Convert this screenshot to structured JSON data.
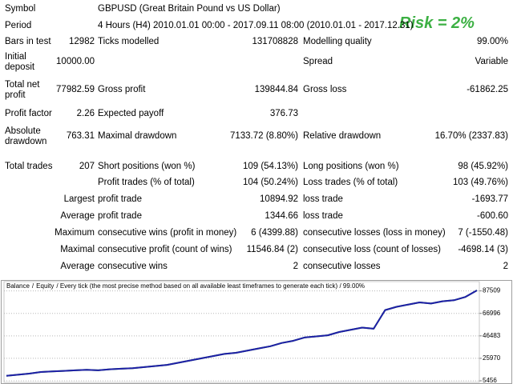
{
  "report": {
    "risk_label": "Risk = 2%",
    "rows": [
      [
        "Symbol",
        null,
        "GBPUSD (Great Britain Pound vs US Dollar)"
      ],
      [
        "Period",
        null,
        "4 Hours (H4) 2010.01.01 00:00 - 2017.09.11 08:00 (2010.01.01 - 2017.12.31)"
      ],
      [
        "Bars in test",
        "12982",
        "Ticks modelled",
        "131708828",
        "Modelling quality",
        "99.00%"
      ],
      [
        "Initial deposit",
        "10000.00",
        null,
        null,
        "Spread",
        "Variable"
      ],
      [
        "Total net profit",
        "77982.59",
        "Gross profit",
        "139844.84",
        "Gross loss",
        "-61862.25"
      ],
      [
        "Profit factor",
        "2.26",
        "Expected payoff",
        "376.73"
      ],
      [
        "Absolute drawdown",
        "763.31",
        "Maximal drawdown",
        "7133.72 (8.80%)",
        "Relative drawdown",
        "16.70% (2337.83)"
      ],
      [
        "Total trades",
        "207",
        "Short positions (won %)",
        "109 (54.13%)",
        "Long positions (won %)",
        "98 (45.92%)"
      ],
      [
        null,
        null,
        "Profit trades (% of total)",
        "104 (50.24%)",
        "Loss trades (% of total)",
        "103 (49.76%)"
      ],
      [
        null,
        "Largest",
        "profit trade",
        "10894.92",
        "loss trade",
        "-1693.77"
      ],
      [
        null,
        "Average",
        "profit trade",
        "1344.66",
        "loss trade",
        "-600.60"
      ],
      [
        null,
        "Maximum",
        "consecutive wins (profit in money)",
        "6 (4399.88)",
        "consecutive losses (loss in money)",
        "7 (-1550.48)"
      ],
      [
        null,
        "Maximal",
        "consecutive profit (count of wins)",
        "11546.84 (2)",
        "consecutive loss (count of losses)",
        "-4698.14 (3)"
      ],
      [
        null,
        "Average",
        "consecutive wins",
        "2",
        "consecutive losses",
        "2"
      ]
    ]
  },
  "chart_data": {
    "type": "line",
    "legend_separator": "/",
    "subtitle": "/ Every tick (the most precise method based on all available least timeframes to generate each tick) / 99.00%",
    "series": [
      {
        "name": "Balance",
        "color": "#1f1fa8",
        "values": [
          10000,
          11000,
          12000,
          13500,
          14000,
          14500,
          15000,
          15500,
          15000,
          16000,
          16500,
          17000,
          18000,
          19000,
          20000,
          22000,
          24000,
          26000,
          28000,
          30000,
          31000,
          33000,
          35000,
          37000,
          40000,
          42000,
          45000,
          46000,
          47000,
          50000,
          52000,
          54000,
          53000,
          70000,
          73000,
          75000,
          77000,
          76000,
          78000,
          79000,
          82000,
          87982
        ]
      },
      {
        "name": "Equity",
        "color": "#2e9b2e",
        "values": [
          10000,
          11000,
          12000,
          13500,
          14000,
          14500,
          15000,
          15500,
          15000,
          16000,
          16500,
          17000,
          18000,
          19000,
          20000,
          22000,
          24000,
          26000,
          28000,
          30000,
          31000,
          33000,
          35000,
          37000,
          40000,
          42000,
          45000,
          46000,
          47000,
          50000,
          52000,
          54000,
          53000,
          70000,
          73000,
          75000,
          77000,
          76000,
          78000,
          79000,
          82000,
          87982
        ]
      }
    ],
    "ylim": [
      4000,
      96000
    ],
    "yticks": [
      5456,
      25970,
      46483,
      66996,
      87509
    ],
    "grid": true
  }
}
